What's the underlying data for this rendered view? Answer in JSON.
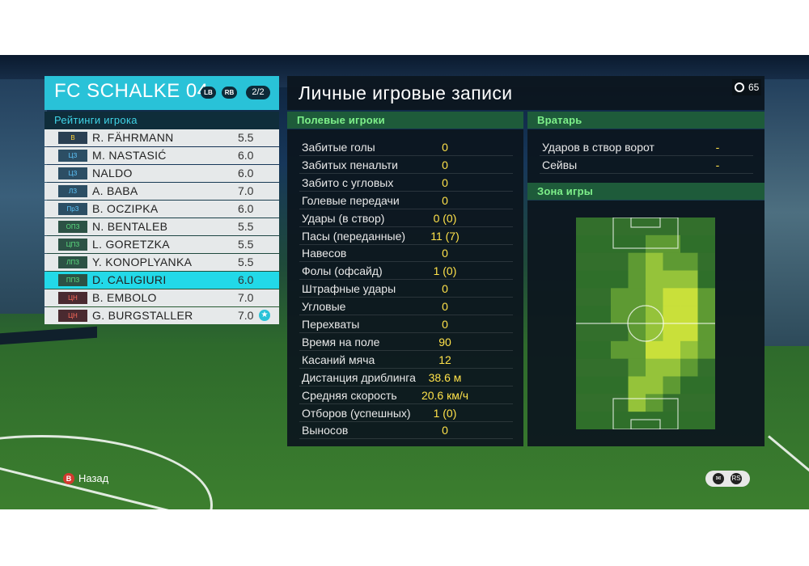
{
  "team": {
    "name": "FC SCHALKE 04",
    "tag_left": "LB",
    "tag_right": "RB",
    "page": "2/2"
  },
  "ratings": {
    "title": "Рейтинги игрока",
    "players": [
      {
        "pos": "В",
        "name": "R. FÄHRMANN",
        "rating": "5.5",
        "group": "gk"
      },
      {
        "pos": "ЦЗ",
        "name": "M. NASTASIĆ",
        "rating": "6.0",
        "group": "def"
      },
      {
        "pos": "ЦЗ",
        "name": "NALDO",
        "rating": "6.0",
        "group": "def"
      },
      {
        "pos": "ЛЗ",
        "name": "A. BABA",
        "rating": "7.0",
        "group": "def"
      },
      {
        "pos": "ПрЗ",
        "name": "B. OCZIPKA",
        "rating": "6.0",
        "group": "def"
      },
      {
        "pos": "ОПЗ",
        "name": "N. BENTALEB",
        "rating": "5.5",
        "group": "mid"
      },
      {
        "pos": "ЦПЗ",
        "name": "L. GORETZKA",
        "rating": "5.5",
        "group": "mid"
      },
      {
        "pos": "ЛПЗ",
        "name": "Y. KONOPLYANKA",
        "rating": "5.5",
        "group": "mid"
      },
      {
        "pos": "ППЗ",
        "name": "D. CALIGIURI",
        "rating": "6.0",
        "group": "mid",
        "selected": true
      },
      {
        "pos": "ЦН",
        "name": "B. EMBOLO",
        "rating": "7.0",
        "group": "fwd"
      },
      {
        "pos": "ЦН",
        "name": "G. BURGSTALLER",
        "rating": "7.0",
        "group": "fwd",
        "star": true
      }
    ]
  },
  "main": {
    "title": "Личные игровые записи",
    "timer": "65",
    "field_title": "Полевые игроки",
    "stats": [
      {
        "label": "Забитые голы",
        "value": "0"
      },
      {
        "label": "Забитых пенальти",
        "value": "0"
      },
      {
        "label": "Забито с угловых",
        "value": "0"
      },
      {
        "label": "Голевые передачи",
        "value": "0"
      },
      {
        "label": "Удары (в створ)",
        "value": "0 (0)"
      },
      {
        "label": "Пасы (переданные)",
        "value": "11 (7)"
      },
      {
        "label": "Навесов",
        "value": "0"
      },
      {
        "label": "Фолы (офсайд)",
        "value": "1 (0)"
      },
      {
        "label": "Штрафные удары",
        "value": "0"
      },
      {
        "label": "Угловые",
        "value": "0"
      },
      {
        "label": "Перехваты",
        "value": "0"
      },
      {
        "label": "Время на поле",
        "value": "90"
      },
      {
        "label": "Касаний мяча",
        "value": "12"
      },
      {
        "label": "Дистанция дриблинга",
        "value": "38.6 м"
      },
      {
        "label": "Средняя скорость",
        "value": "20.6 км/ч"
      },
      {
        "label": "Отборов (успешных)",
        "value": "1 (0)"
      },
      {
        "label": "Выносов",
        "value": "0"
      }
    ],
    "gk_title": "Вратарь",
    "gk_stats": [
      {
        "label": "Ударов в створ ворот",
        "value": "-"
      },
      {
        "label": "Сейвы",
        "value": "-"
      }
    ],
    "zone_title": "Зона игры"
  },
  "colors": {
    "accent": "#29c2d8",
    "value_yellow": "#ffe24a",
    "section_green": "#7ef08a"
  },
  "heatmap": {
    "cols": 8,
    "rows": 12,
    "intensity": [
      [
        0,
        0,
        0,
        0,
        0,
        0,
        0,
        0
      ],
      [
        0,
        0,
        0,
        0,
        1,
        1,
        0,
        0
      ],
      [
        0,
        0,
        0,
        1,
        2,
        1,
        1,
        0
      ],
      [
        0,
        0,
        0,
        1,
        2,
        2,
        2,
        0
      ],
      [
        0,
        0,
        1,
        1,
        2,
        3,
        3,
        1
      ],
      [
        0,
        0,
        1,
        1,
        2,
        3,
        3,
        1
      ],
      [
        0,
        0,
        0,
        1,
        2,
        3,
        3,
        1
      ],
      [
        0,
        0,
        1,
        1,
        3,
        3,
        2,
        1
      ],
      [
        0,
        0,
        0,
        1,
        2,
        2,
        1,
        0
      ],
      [
        0,
        0,
        0,
        2,
        2,
        1,
        0,
        0
      ],
      [
        0,
        0,
        0,
        2,
        1,
        0,
        0,
        0
      ],
      [
        0,
        0,
        0,
        0,
        0,
        0,
        0,
        0
      ]
    ]
  },
  "footer": {
    "back_icon": "B",
    "back_label": "Назад",
    "help_icon": "chat-icon",
    "rs_icon": "RS"
  }
}
